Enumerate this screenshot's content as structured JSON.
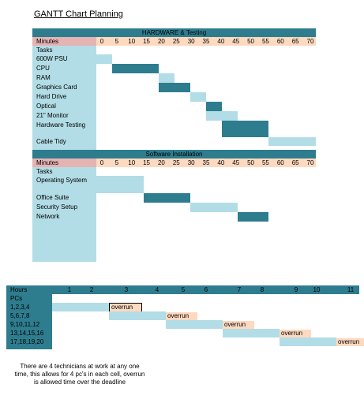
{
  "title": "GANTT Chart Planning",
  "colors": {
    "dark": "#2e7d8f",
    "light": "#b2dde6",
    "minutes_label": "#e6b3b3",
    "minutes_band": "#fdd9c0"
  },
  "chart_data": [
    {
      "type": "gantt",
      "title": "HARDWARE & Testing",
      "axis_label": "Minutes",
      "ticks": [
        "0",
        "5",
        "10",
        "15",
        "20",
        "25",
        "30",
        "35",
        "40",
        "45",
        "50",
        "55",
        "60",
        "65",
        "70"
      ],
      "header_label": "Tasks",
      "tasks": [
        {
          "name": "600W PSU",
          "start": 0,
          "end": 5,
          "shade": "light"
        },
        {
          "name": "CPU",
          "start": 5,
          "end": 20,
          "shade": "dark"
        },
        {
          "name": "RAM",
          "start": 20,
          "end": 25,
          "shade": "light"
        },
        {
          "name": "Graphics Card",
          "start": 20,
          "end": 30,
          "shade": "dark"
        },
        {
          "name": "Hard Drive",
          "start": 30,
          "end": 35,
          "shade": "light"
        },
        {
          "name": "Optical",
          "start": 35,
          "end": 40,
          "shade": "dark"
        },
        {
          "name": "21\" Monitor",
          "start": 35,
          "end": 45,
          "shade": "light"
        },
        {
          "name": "Hardware Testing",
          "start": 40,
          "end": 55,
          "shade": "dark"
        },
        {
          "name": "Cable Tidy",
          "start": 55,
          "end": 70,
          "shade": "light"
        }
      ]
    },
    {
      "type": "gantt",
      "title": "Software Installation",
      "axis_label": "Minutes",
      "ticks": [
        "0",
        "5",
        "10",
        "15",
        "20",
        "25",
        "30",
        "35",
        "40",
        "45",
        "50",
        "55",
        "60",
        "65",
        "70"
      ],
      "header_label": "Tasks",
      "tasks": [
        {
          "name": "Operating System",
          "start": 0,
          "end": 15,
          "shade": "light"
        },
        {
          "name": "Office Suite",
          "start": 15,
          "end": 30,
          "shade": "dark"
        },
        {
          "name": "Security Setup",
          "start": 30,
          "end": 45,
          "shade": "light"
        },
        {
          "name": "Network",
          "start": 45,
          "end": 55,
          "shade": "dark"
        }
      ]
    },
    {
      "type": "gantt",
      "title": "",
      "axis_label": "Hours",
      "ticks": [
        "1",
        "2",
        "3",
        "4",
        "5",
        "6",
        "7",
        "8",
        "9",
        "10",
        "11"
      ],
      "header_label": "PCs",
      "tasks": [
        {
          "name": "1,2,3,4",
          "start": 0,
          "end": 2,
          "overrun": "overrun"
        },
        {
          "name": "5,6,7,8",
          "start": 2,
          "end": 4,
          "overrun": "overrun"
        },
        {
          "name": "9,10,11,12",
          "start": 4,
          "end": 6,
          "overrun": "overrun"
        },
        {
          "name": "13,14,15,16",
          "start": 6,
          "end": 8,
          "overrun": "overrun"
        },
        {
          "name": "17,18,19,20",
          "start": 8,
          "end": 10,
          "overrun": "overrun"
        }
      ]
    }
  ],
  "note": "There are 4 technicians  at work at any one time, this allows for 4 pc's in each cell, overrun is allowed time over the deadline"
}
